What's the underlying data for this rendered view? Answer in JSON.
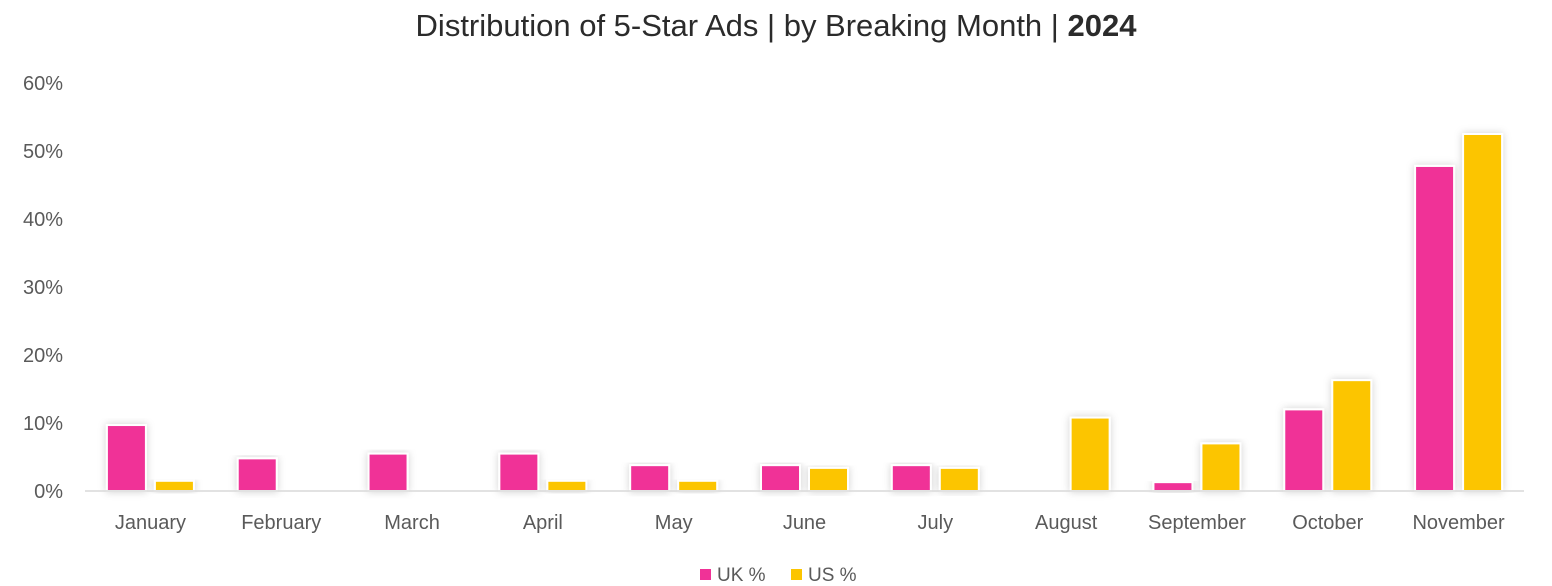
{
  "chart_data": {
    "type": "bar",
    "title": "Distribution of 5-Star Ads | by Breaking Month | ",
    "title_bold": "2024",
    "categories": [
      "January",
      "February",
      "March",
      "April",
      "May",
      "June",
      "July",
      "August",
      "September",
      "October",
      "November"
    ],
    "series": [
      {
        "name": "UK %",
        "color": "#f03297",
        "values": [
          9.7,
          4.8,
          5.5,
          5.5,
          3.8,
          3.8,
          3.8,
          0,
          1.3,
          12.0,
          47.8
        ]
      },
      {
        "name": "US %",
        "color": "#fcc500",
        "values": [
          1.5,
          0,
          0,
          1.5,
          1.5,
          3.4,
          3.4,
          10.8,
          7.0,
          16.3,
          52.5
        ]
      }
    ],
    "ylim": [
      0,
      60
    ],
    "yticks": [
      "0%",
      "10%",
      "20%",
      "30%",
      "40%",
      "50%",
      "60%"
    ],
    "xlabel": "",
    "ylabel": "",
    "grid": false,
    "legend_position": "bottom"
  }
}
